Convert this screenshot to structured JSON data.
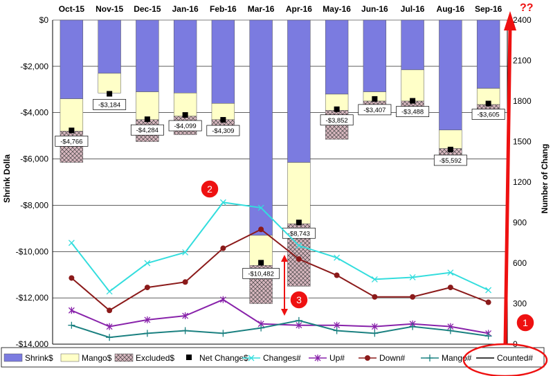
{
  "chart_data": {
    "type": "bar",
    "categories": [
      "Oct-15",
      "Nov-15",
      "Dec-15",
      "Jan-16",
      "Feb-16",
      "Mar-16",
      "Apr-16",
      "May-16",
      "Jun-16",
      "Jul-16",
      "Aug-16",
      "Sep-16"
    ],
    "ylabel": "Shrink Dolla",
    "y2label": "Number of Chang",
    "ylim": [
      -14000,
      0
    ],
    "y2lim": [
      0,
      2400
    ],
    "yticks": [
      "$0",
      "-$2,000",
      "-$4,000",
      "-$6,000",
      "-$8,000",
      "-$10,000",
      "-$12,000",
      "-$14,000"
    ],
    "y2ticks": [
      "2400",
      "2100",
      "1800",
      "1500",
      "1200",
      "900",
      "600",
      "300",
      "0"
    ],
    "bar_series": [
      {
        "name": "Shrink$",
        "color": "#7b7be0",
        "values": [
          -3400,
          -2300,
          -3100,
          -3150,
          -3600,
          -9300,
          -6150,
          -3200,
          -3100,
          -2150,
          -4750,
          -2950
        ]
      },
      {
        "name": "Mango$",
        "color": "#ffffc8",
        "values": [
          -1400,
          -850,
          -1200,
          -1000,
          -700,
          -1300,
          -2650,
          -700,
          -400,
          -1350,
          -800,
          -700
        ]
      },
      {
        "name": "Excluded$",
        "color": "#d9b8c0",
        "values": [
          -1350,
          0,
          -950,
          -800,
          -650,
          -1650,
          -2700,
          -1250,
          -300,
          -300,
          -550,
          -200
        ]
      }
    ],
    "net_change": {
      "name": "Net Change$",
      "values": [
        -4766,
        -3184,
        -4284,
        -4099,
        -4309,
        -10482,
        -8743,
        -3852,
        -3407,
        -3488,
        -5592,
        -3605
      ],
      "labels": [
        "-$4,766",
        "-$3,184",
        "-$4,284",
        "-$4,099",
        "-$4,309",
        "-$10,482",
        "-$8,743",
        "-$3,852",
        "-$3,407",
        "-$3,488",
        "-$5,592",
        "-$3,605"
      ]
    },
    "line_series": [
      {
        "name": "Changes#",
        "color": "#33dddd",
        "marker": "x",
        "values": [
          750,
          390,
          600,
          680,
          1050,
          1010,
          730,
          640,
          480,
          495,
          530,
          400
        ]
      },
      {
        "name": "Up#",
        "color": "#8822aa",
        "marker": "star",
        "values": [
          250,
          130,
          180,
          210,
          330,
          150,
          140,
          140,
          130,
          150,
          130,
          80
        ]
      },
      {
        "name": "Down#",
        "color": "#8b1a1a",
        "marker": "dot",
        "values": [
          490,
          250,
          420,
          460,
          710,
          850,
          630,
          510,
          350,
          350,
          420,
          310
        ]
      },
      {
        "name": "Mango#",
        "color": "#1a8080",
        "marker": "plus",
        "values": [
          140,
          50,
          80,
          100,
          80,
          120,
          175,
          100,
          80,
          130,
          100,
          60
        ]
      },
      {
        "name": "Counted#",
        "color": "#000000",
        "marker": "none",
        "values": []
      }
    ],
    "legend": {
      "position": "bottom"
    }
  },
  "annotations": {
    "badge_1": "1",
    "badge_2": "2",
    "badge_3": "3",
    "question": "??"
  },
  "colors": {
    "annotation_red": "#ee1111",
    "grid": "#000000"
  }
}
